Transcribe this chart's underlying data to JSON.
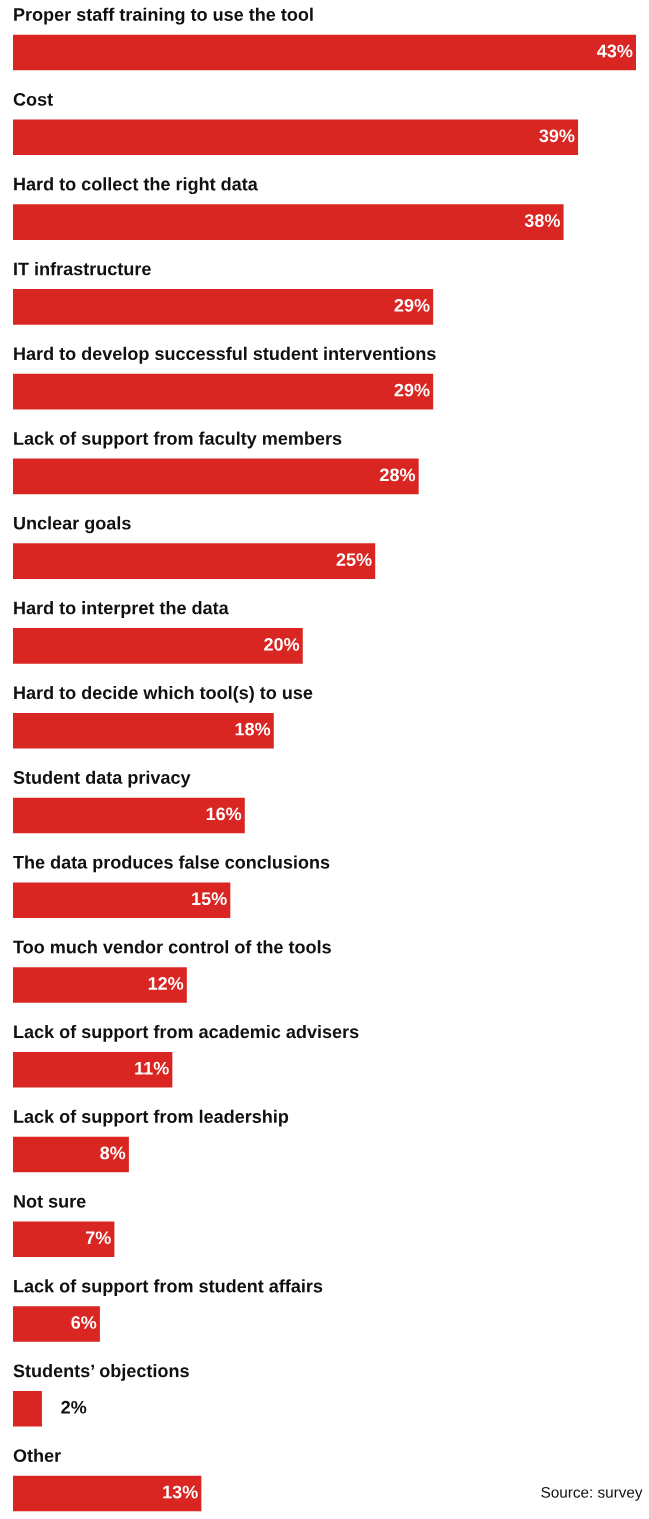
{
  "chart_data": {
    "type": "bar",
    "orientation": "horizontal",
    "categories": [
      "Proper staff training to use the tool",
      "Cost",
      "Hard to collect the right data",
      "IT infrastructure",
      "Hard to develop successful student interventions",
      "Lack of support from faculty members",
      "Unclear goals",
      "Hard to interpret the data",
      "Hard to decide which tool(s) to use",
      "Student data privacy",
      "The data produces false conclusions",
      "Too much vendor control of the tools",
      "Lack of support from academic advisers",
      "Lack of support from leadership",
      "Not sure",
      "Lack of support from student affairs",
      "Students’ objections",
      "Other"
    ],
    "values": [
      43,
      39,
      38,
      29,
      29,
      28,
      25,
      20,
      18,
      16,
      15,
      12,
      11,
      8,
      7,
      6,
      2,
      13
    ],
    "value_labels": [
      "43%",
      "39%",
      "38%",
      "29%",
      "29%",
      "28%",
      "25%",
      "20%",
      "18%",
      "16%",
      "15%",
      "12%",
      "11%",
      "8%",
      "7%",
      "6%",
      "2%",
      "13%"
    ],
    "color": "#d92622",
    "tick_labels": false,
    "legend": false,
    "annotations": [
      "Source: survey"
    ]
  }
}
